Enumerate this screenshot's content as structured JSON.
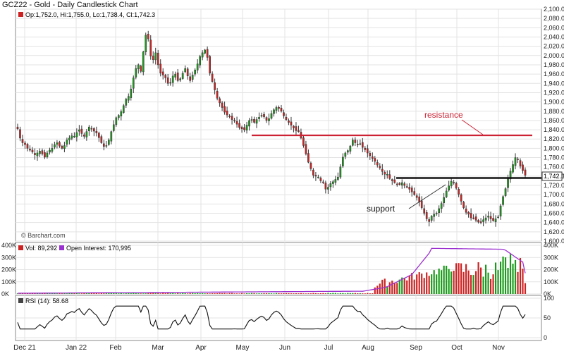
{
  "title": "GCZ22 - Gold - Daily Candlestick Chart",
  "ohlc_label": "Op:1,752.0, Hi:1,755.0, Lo:1,738.4, Cl:1,742.3",
  "last_price_label": "1,742.3",
  "credit": "© Barchart.com",
  "volume_label": "Vol: 89,292",
  "open_interest_label": "Open Interest: 170,995",
  "rsi_label": "RSI (14): 58.68",
  "colors": {
    "up": "#1a9a1a",
    "down": "#cc2222",
    "resistance": "#cc2233",
    "support": "#111111",
    "open_interest": "#9b30d0",
    "rsi": "#111111"
  },
  "chart_data": [
    {
      "type": "candlestick",
      "title": "GCZ22 - Gold - Daily Candlestick Chart",
      "x_labels": [
        "Dec 21",
        "Jan 22",
        "Feb",
        "Mar",
        "Apr",
        "May",
        "Jun",
        "Jul",
        "Aug",
        "Sep",
        "Oct",
        "Nov"
      ],
      "y_ticks": [
        "2,100.0",
        "2,080.0",
        "2,060.0",
        "2,040.0",
        "2,020.0",
        "2,000.0",
        "1,980.0",
        "1,960.0",
        "1,940.0",
        "1,920.0",
        "1,900.0",
        "1,880.0",
        "1,860.0",
        "1,840.0",
        "1,820.0",
        "1,800.0",
        "1,780.0",
        "1,760.0",
        "1,740.0",
        "1,720.0",
        "1,700.0",
        "1,680.0",
        "1,660.0",
        "1,640.0",
        "1,620.0",
        "1,600.0"
      ],
      "ylim": [
        1600,
        2100
      ],
      "closes": [
        1842,
        1822,
        1812,
        1808,
        1800,
        1796,
        1792,
        1786,
        1790,
        1794,
        1788,
        1781,
        1790,
        1796,
        1800,
        1808,
        1812,
        1805,
        1800,
        1806,
        1818,
        1822,
        1827,
        1826,
        1834,
        1840,
        1832,
        1826,
        1836,
        1846,
        1843,
        1837,
        1833,
        1823,
        1812,
        1804,
        1806,
        1818,
        1836,
        1851,
        1866,
        1871,
        1879,
        1892,
        1906,
        1912,
        1928,
        1952,
        1972,
        1980,
        1966,
        2008,
        2044,
        2036,
        1999,
        1991,
        2006,
        1980,
        1962,
        1958,
        1952,
        1940,
        1942,
        1956,
        1960,
        1946,
        1950,
        1962,
        1972,
        1956,
        1946,
        1958,
        1969,
        1982,
        1998,
        2006,
        2012,
        1996,
        1962,
        1944,
        1926,
        1908,
        1898,
        1888,
        1878,
        1872,
        1868,
        1862,
        1860,
        1852,
        1845,
        1842,
        1840,
        1850,
        1860,
        1862,
        1856,
        1862,
        1867,
        1871,
        1868,
        1860,
        1864,
        1875,
        1883,
        1888,
        1886,
        1880,
        1870,
        1862,
        1856,
        1850,
        1844,
        1838,
        1836,
        1822,
        1806,
        1788,
        1770,
        1756,
        1742,
        1740,
        1738,
        1730,
        1726,
        1712,
        1716,
        1724,
        1728,
        1733,
        1738,
        1760,
        1781,
        1790,
        1795,
        1805,
        1818,
        1812,
        1808,
        1810,
        1802,
        1797,
        1790,
        1784,
        1778,
        1772,
        1764,
        1758,
        1750,
        1744,
        1744,
        1735,
        1730,
        1726,
        1722,
        1722,
        1726,
        1720,
        1716,
        1712,
        1706,
        1700,
        1694,
        1684,
        1672,
        1660,
        1648,
        1642,
        1654,
        1658,
        1660,
        1670,
        1681,
        1694,
        1708,
        1719,
        1729,
        1726,
        1714,
        1701,
        1686,
        1672,
        1662,
        1658,
        1650,
        1650,
        1645,
        1641,
        1640,
        1646,
        1650,
        1654,
        1648,
        1644,
        1648,
        1652,
        1676,
        1696,
        1713,
        1734,
        1751,
        1765,
        1780,
        1776,
        1762,
        1752,
        1742
      ],
      "volume": {
        "ylim": [
          0,
          400000
        ],
        "y_ticks": [
          "400K",
          "300K",
          "200K",
          "100K",
          "0K"
        ],
        "latest": 89292
      },
      "open_interest": {
        "latest": 170995
      },
      "rsi": {
        "period": 14,
        "latest": 58.68,
        "y_ticks": [
          "100",
          "50",
          "0"
        ]
      },
      "annotations": [
        {
          "text": "resistance",
          "price": 1828
        },
        {
          "text": "support",
          "price": 1736
        }
      ]
    }
  ]
}
